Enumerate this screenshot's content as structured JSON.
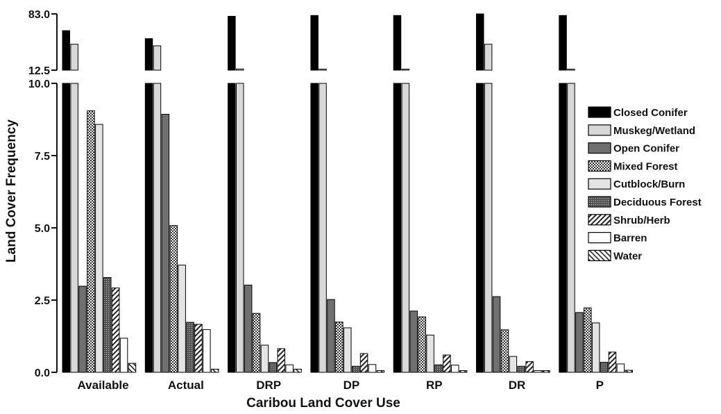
{
  "chart_data": {
    "type": "bar",
    "xlabel": "Caribou Land Cover Use",
    "ylabel": "Land Cover Frequency",
    "categories": [
      "Available",
      "Actual",
      "DRP",
      "DP",
      "RP",
      "DR",
      "P"
    ],
    "y_axis": {
      "broken": true,
      "lower_range": [
        0,
        10
      ],
      "lower_ticks": [
        "0.0",
        "2.5",
        "5.0",
        "7.5",
        "10.0"
      ],
      "upper_range": [
        12.5,
        83
      ],
      "upper_ticks": [
        "12.5",
        "83.0"
      ]
    },
    "legend_position": "right",
    "series": [
      {
        "name": "Closed Conifer",
        "pattern": "black",
        "values": [
          62,
          52,
          80,
          81,
          81,
          83,
          81
        ]
      },
      {
        "name": "Muskeg/Wetland",
        "pattern": "lightgray",
        "values": [
          45,
          43,
          14,
          13.5,
          13.5,
          45,
          13
        ]
      },
      {
        "name": "Open Conifer",
        "pattern": "darkgray",
        "values": [
          2.98,
          8.93,
          3.02,
          2.52,
          2.12,
          2.62,
          2.07
        ]
      },
      {
        "name": "Mixed Forest",
        "pattern": "checker",
        "values": [
          9.05,
          5.08,
          2.04,
          1.74,
          1.92,
          1.47,
          2.23
        ]
      },
      {
        "name": "Cutblock/Burn",
        "pattern": "pale",
        "values": [
          8.58,
          3.71,
          0.94,
          1.54,
          1.29,
          0.55,
          1.71
        ]
      },
      {
        "name": "Deciduous Forest",
        "pattern": "stipple",
        "values": [
          3.28,
          1.73,
          0.34,
          0.21,
          0.26,
          0.21,
          0.35
        ]
      },
      {
        "name": "Shrub/Herb",
        "pattern": "hatch",
        "values": [
          2.92,
          1.66,
          0.82,
          0.65,
          0.6,
          0.37,
          0.7
        ]
      },
      {
        "name": "Barren",
        "pattern": "white",
        "values": [
          1.18,
          1.48,
          0.26,
          0.27,
          0.25,
          0.06,
          0.29
        ]
      },
      {
        "name": "Water",
        "pattern": "diag",
        "values": [
          0.31,
          0.11,
          0.11,
          0.06,
          0.06,
          0.06,
          0.07
        ]
      }
    ]
  }
}
